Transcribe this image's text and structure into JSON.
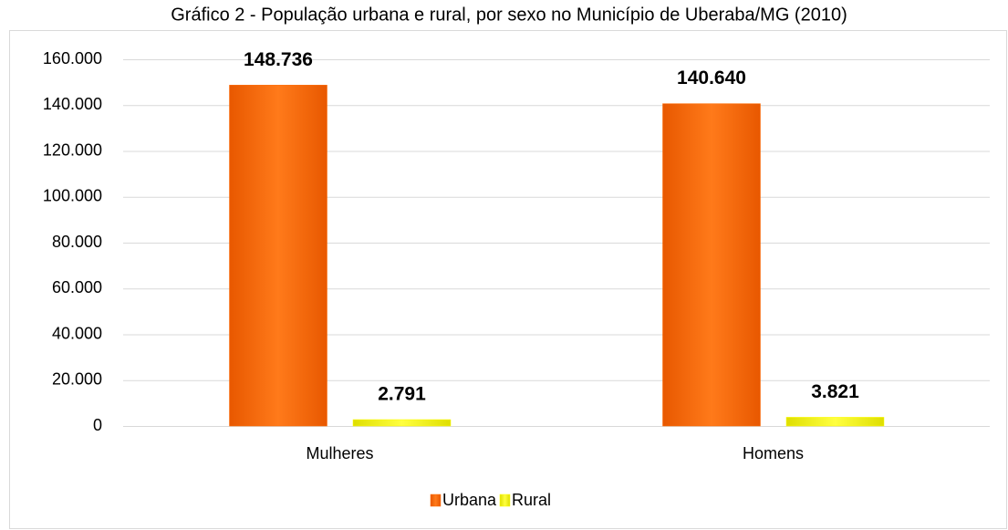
{
  "chart_data": {
    "type": "bar",
    "title": "Gráfico 2 - População urbana e rural, por sexo no Município de Uberaba/MG (2010)",
    "categories": [
      "Mulheres",
      "Homens"
    ],
    "series": [
      {
        "name": "Urbana",
        "color": "#ff6a00",
        "values": [
          148736,
          140640
        ],
        "value_labels": [
          "148.736",
          "140.640"
        ]
      },
      {
        "name": "Rural",
        "color": "#ffff00",
        "values": [
          2791,
          3821
        ],
        "value_labels": [
          "2.791",
          "3.821"
        ]
      }
    ],
    "ylim": [
      0,
      160000
    ],
    "yticks": [
      0,
      {
        "value": 20000,
        "label": "20.000"
      },
      {
        "value": 40000,
        "label": "40.000"
      },
      {
        "value": 60000,
        "label": "60.000"
      },
      {
        "value": 80000,
        "label": "80.000"
      },
      {
        "value": 100000,
        "label": "100.000"
      },
      {
        "value": 120000,
        "label": "120.000"
      },
      {
        "value": 140000,
        "label": "140.000"
      },
      {
        "value": 160000,
        "label": "160.000"
      }
    ],
    "grid": true,
    "legend": "bottom"
  }
}
